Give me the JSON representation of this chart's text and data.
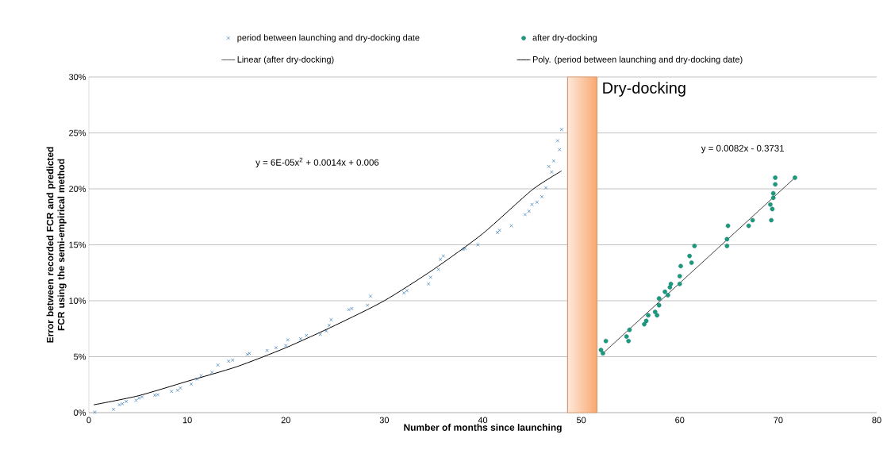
{
  "chart_data": {
    "type": "scatter",
    "xlabel": "Number of months since launching",
    "ylabel": "Error  between recorded FCR and predicted FCR using the semi-empirical method",
    "xlim": [
      0,
      80
    ],
    "xticks": [
      0,
      10,
      20,
      30,
      40,
      50,
      60,
      70,
      80
    ],
    "ylim": [
      0,
      30
    ],
    "yticks": [
      {
        "value": 0,
        "label": "0%"
      },
      {
        "value": 5,
        "label": "5%"
      },
      {
        "value": 10,
        "label": "10%"
      },
      {
        "value": 15,
        "label": "15%"
      },
      {
        "value": 20,
        "label": "20%"
      },
      {
        "value": 25,
        "label": "25%"
      },
      {
        "value": 30,
        "label": "30%"
      }
    ],
    "grid": "y",
    "legend": "top",
    "series": [
      {
        "name": "period between launching and dry-docking date",
        "type": "scatter",
        "marker": "cross",
        "color": "#2e75b6",
        "x": [
          0.6,
          2.5,
          3.1,
          3.4,
          3.8,
          4.8,
          5.1,
          5.4,
          6.7,
          7.0,
          8.4,
          9.0,
          9.3,
          10.4,
          11.0,
          11.4,
          12.5,
          13.1,
          14.2,
          14.6,
          16.1,
          16.3,
          18.1,
          19.0,
          20.0,
          20.2,
          21.5,
          22.1,
          23.5,
          24.1,
          24.4,
          24.6,
          26.4,
          26.7,
          28.3,
          28.6,
          32.0,
          32.3,
          34.5,
          34.7,
          35.5,
          35.7,
          36.0,
          38.0,
          38.2,
          39.5,
          41.5,
          41.7,
          42.9,
          44.3,
          44.7,
          45.0,
          45.5,
          46.0,
          46.4,
          46.7,
          47.0,
          47.2,
          47.6,
          47.8,
          48.0
        ],
        "values": [
          0.05,
          0.3,
          0.7,
          0.8,
          1.0,
          1.1,
          1.3,
          1.4,
          1.56,
          1.6,
          1.9,
          2.0,
          2.2,
          2.55,
          3.0,
          3.3,
          3.6,
          4.25,
          4.6,
          4.7,
          5.2,
          5.3,
          5.55,
          5.8,
          6.0,
          6.5,
          6.6,
          6.9,
          7.0,
          7.3,
          7.8,
          8.3,
          9.2,
          9.3,
          9.6,
          10.4,
          10.7,
          10.9,
          11.5,
          12.1,
          12.8,
          13.7,
          14.0,
          14.6,
          14.66,
          15.0,
          16.1,
          16.3,
          16.7,
          17.7,
          18.0,
          18.6,
          18.8,
          19.3,
          20.1,
          22.0,
          21.5,
          22.5,
          24.3,
          23.5,
          25.3
        ]
      },
      {
        "name": "after dry-docking",
        "type": "scatter",
        "marker": "circle",
        "color": "#1a9e6e",
        "x": [
          52.0,
          52.2,
          52.5,
          54.6,
          54.8,
          54.9,
          56.4,
          56.6,
          56.8,
          57.5,
          57.7,
          57.9,
          57.9,
          58.5,
          58.8,
          59.0,
          59.1,
          60.0,
          60.0,
          60.1,
          61.0,
          61.2,
          61.5,
          64.8,
          64.8,
          64.9,
          67.0,
          67.4,
          69.2,
          69.3,
          69.4,
          69.5,
          69.5,
          69.7,
          69.7,
          71.7
        ],
        "values": [
          5.6,
          5.3,
          6.4,
          6.8,
          6.4,
          7.4,
          7.9,
          8.2,
          8.7,
          9.0,
          8.7,
          9.6,
          10.2,
          10.8,
          10.5,
          11.2,
          11.5,
          11.5,
          12.2,
          13.1,
          14.0,
          13.4,
          14.9,
          14.9,
          15.5,
          16.7,
          16.7,
          17.2,
          18.6,
          17.2,
          18.2,
          19.2,
          19.6,
          20.4,
          21.0,
          21.0
        ]
      },
      {
        "name": "Linear (after dry-docking)",
        "type": "line",
        "marker": "none",
        "line_style": "solid",
        "color": "#404040",
        "x": [
          52.2,
          71.7
        ],
        "values": [
          5.3,
          21.0
        ]
      },
      {
        "name": "Poly. (period between launching and dry-docking date)",
        "type": "line",
        "marker": "none",
        "line_style": "solid",
        "color": "#000000",
        "x": [
          0.5,
          5,
          10,
          15,
          20,
          25,
          30,
          35,
          40,
          45,
          48
        ],
        "values": [
          0.7,
          1.5,
          2.8,
          4.1,
          5.8,
          7.8,
          10.0,
          12.8,
          16.0,
          19.9,
          21.6
        ]
      }
    ],
    "bands": [
      {
        "axis": "x",
        "from": 48.6,
        "to": 51.6,
        "label": "Dry-docking",
        "color": "#f9a870"
      }
    ],
    "annotations": [
      "y = 6E-05x$^{2}$ + 0.0014x + 0.006",
      "y = 0.0082x - 0.3731"
    ]
  }
}
